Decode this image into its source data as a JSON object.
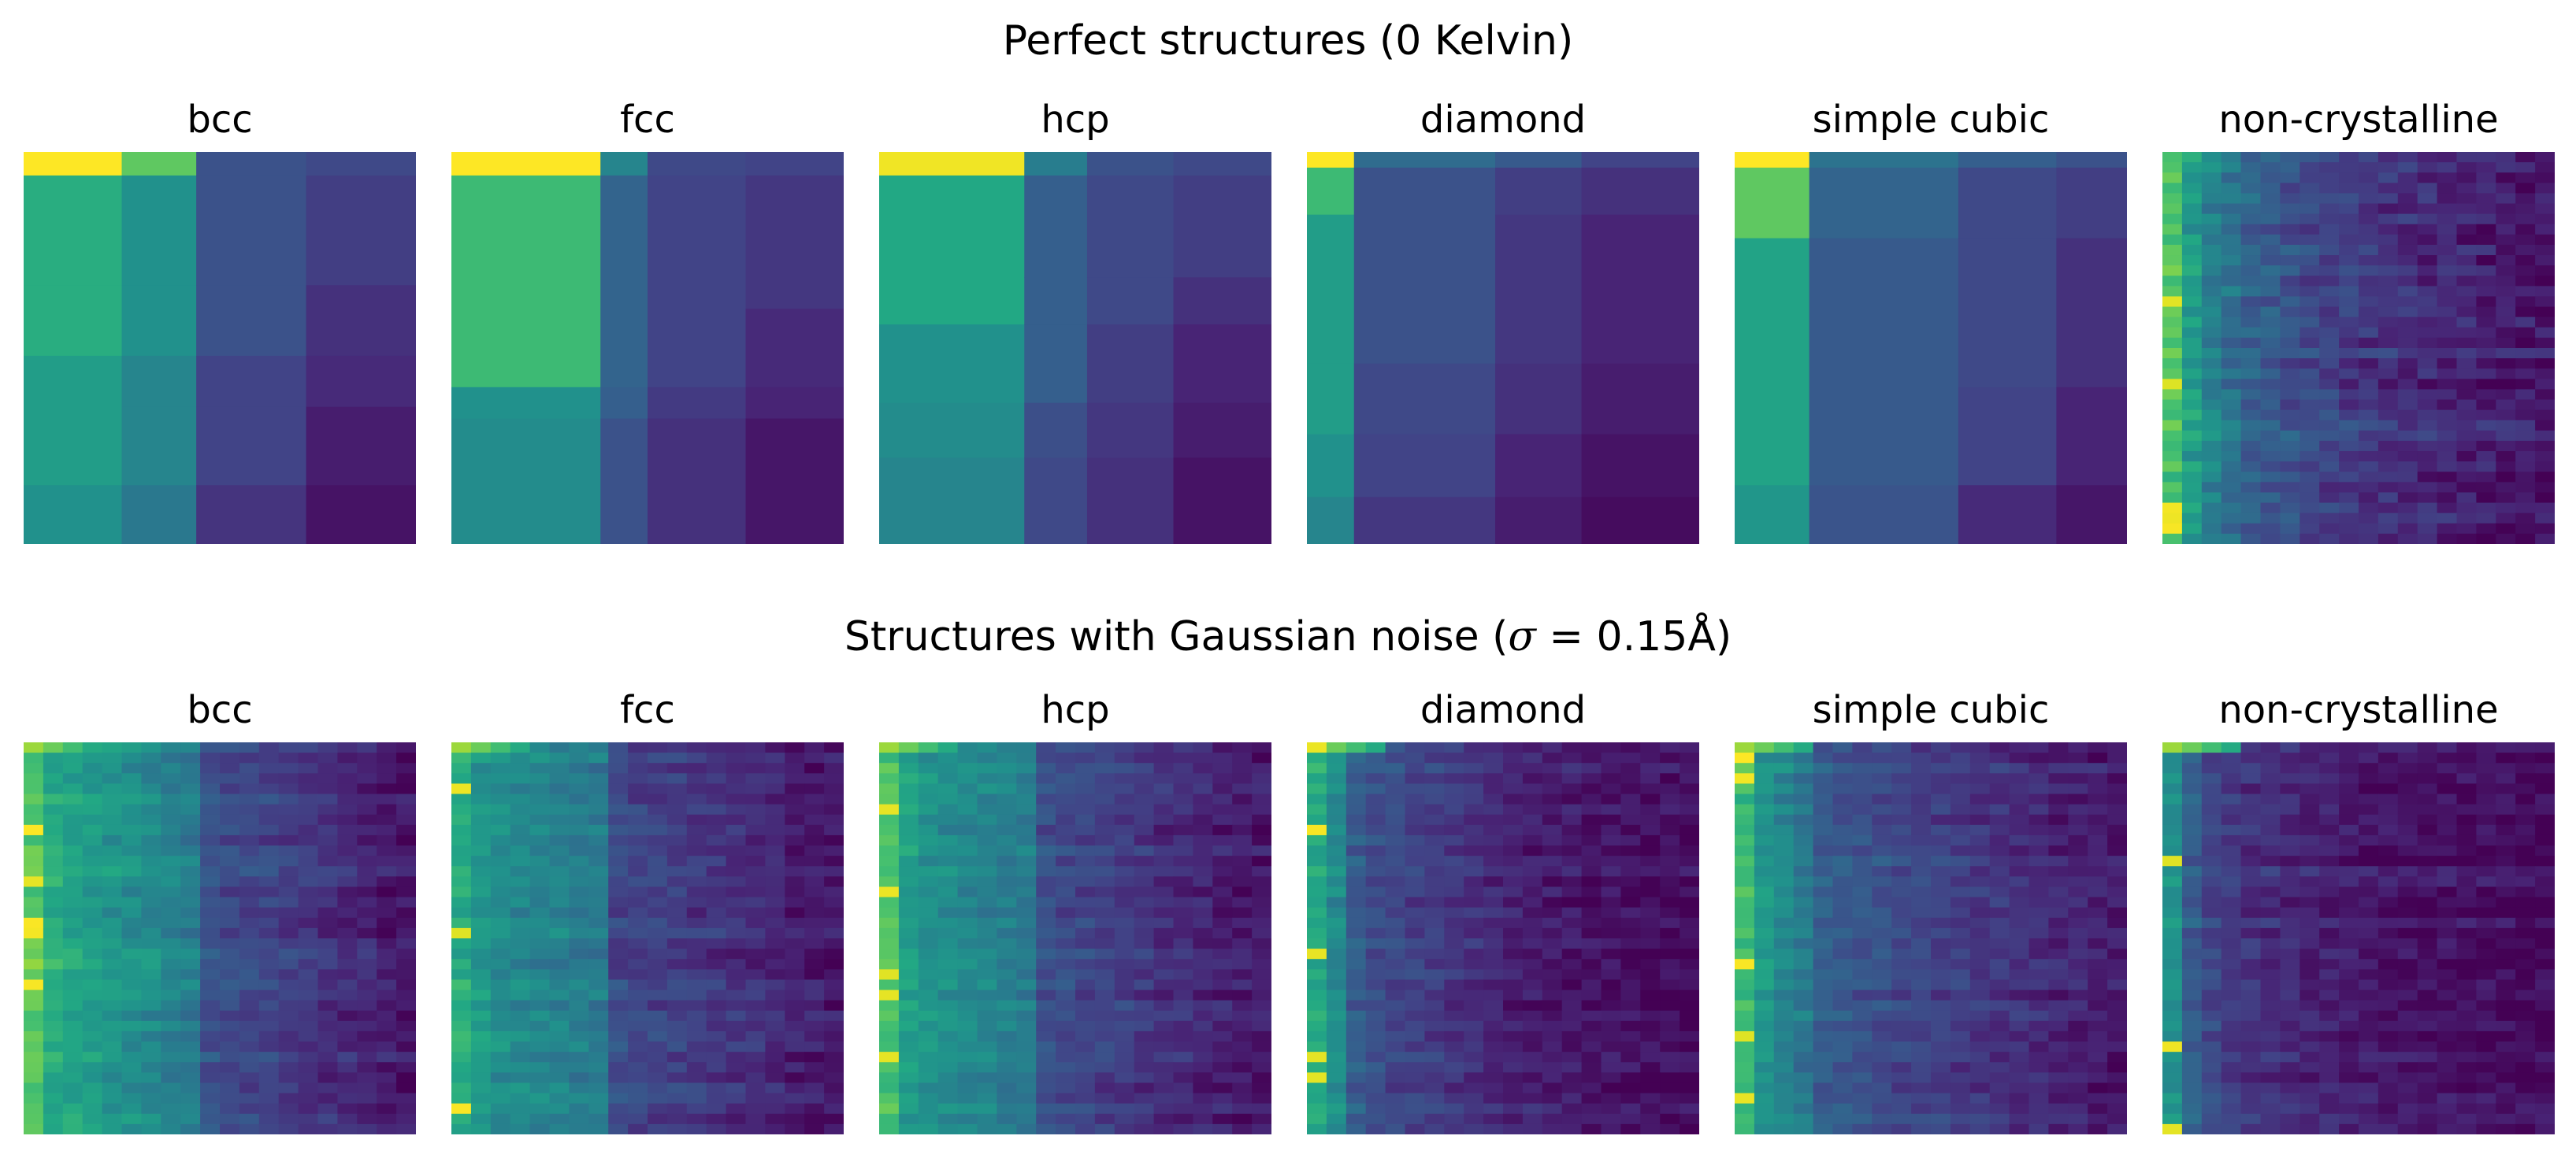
{
  "titles": {
    "row1": "Perfect structures (0 Kelvin)",
    "row2_prefix": "Structures with Gaussian noise (",
    "row2_sigma": "σ",
    "row2_suffix": " = 0.15Å)"
  },
  "chart_data": {
    "type": "heatmap",
    "colormap": "viridis",
    "value_range": [
      0,
      1
    ],
    "axes": "off",
    "rows": [
      {
        "name": "Perfect structures (0 Kelvin)",
        "noisy": false,
        "panels": [
          {
            "title": "bcc",
            "column_blocks": [
              {
                "width": 0.25,
                "values": [
                  1.0,
                  0.62,
                  0.62,
                  0.55,
                  0.55,
                  0.5
                ]
              },
              {
                "width": 0.19,
                "values": [
                  0.75,
                  0.5,
                  0.5,
                  0.45,
                  0.45,
                  0.4
                ]
              },
              {
                "width": 0.28,
                "values": [
                  0.25,
                  0.25,
                  0.25,
                  0.2,
                  0.2,
                  0.15
                ]
              },
              {
                "width": 0.28,
                "values": [
                  0.22,
                  0.18,
                  0.14,
                  0.12,
                  0.08,
                  0.05
                ]
              }
            ],
            "row_weights": [
              0.06,
              0.28,
              0.18,
              0.13,
              0.2,
              0.15
            ]
          },
          {
            "title": "fcc",
            "column_blocks": [
              {
                "width": 0.38,
                "values": [
                  1.0,
                  0.68,
                  0.68,
                  0.5,
                  0.48,
                  0.48
                ]
              },
              {
                "width": 0.12,
                "values": [
                  0.45,
                  0.32,
                  0.32,
                  0.3,
                  0.25,
                  0.22
                ]
              },
              {
                "width": 0.25,
                "values": [
                  0.22,
                  0.2,
                  0.2,
                  0.17,
                  0.14,
                  0.12
                ]
              },
              {
                "width": 0.25,
                "values": [
                  0.2,
                  0.16,
                  0.12,
                  0.1,
                  0.06,
                  0.04
                ]
              }
            ],
            "row_weights": [
              0.06,
              0.34,
              0.2,
              0.08,
              0.32,
              0.0
            ]
          },
          {
            "title": "hcp",
            "column_blocks": [
              {
                "width": 0.37,
                "values": [
                  0.98,
                  0.6,
                  0.6,
                  0.5,
                  0.48,
                  0.45
                ]
              },
              {
                "width": 0.16,
                "values": [
                  0.42,
                  0.3,
                  0.3,
                  0.3,
                  0.24,
                  0.22
                ]
              },
              {
                "width": 0.22,
                "values": [
                  0.25,
                  0.22,
                  0.22,
                  0.18,
                  0.16,
                  0.14
                ]
              },
              {
                "width": 0.25,
                "values": [
                  0.22,
                  0.18,
                  0.14,
                  0.1,
                  0.08,
                  0.05
                ]
              }
            ],
            "row_weights": [
              0.06,
              0.26,
              0.12,
              0.2,
              0.14,
              0.22
            ]
          },
          {
            "title": "diamond",
            "column_blocks": [
              {
                "width": 0.12,
                "values": [
                  1.0,
                  0.68,
                  0.55,
                  0.55,
                  0.5,
                  0.45
                ]
              },
              {
                "width": 0.36,
                "values": [
                  0.35,
                  0.25,
                  0.25,
                  0.22,
                  0.2,
                  0.16
                ]
              },
              {
                "width": 0.22,
                "values": [
                  0.28,
                  0.18,
                  0.16,
                  0.14,
                  0.1,
                  0.08
                ]
              },
              {
                "width": 0.3,
                "values": [
                  0.2,
                  0.14,
                  0.1,
                  0.08,
                  0.05,
                  0.03
                ]
              }
            ],
            "row_weights": [
              0.04,
              0.12,
              0.38,
              0.18,
              0.16,
              0.12
            ]
          },
          {
            "title": "simple cubic",
            "column_blocks": [
              {
                "width": 0.19,
                "values": [
                  1.0,
                  0.75,
                  0.58,
                  0.58,
                  0.52,
                  0.52
                ]
              },
              {
                "width": 0.38,
                "values": [
                  0.38,
                  0.32,
                  0.28,
                  0.28,
                  0.26,
                  0.24
                ]
              },
              {
                "width": 0.25,
                "values": [
                  0.3,
                  0.22,
                  0.22,
                  0.2,
                  0.12,
                  0.1
                ]
              },
              {
                "width": 0.18,
                "values": [
                  0.25,
                  0.18,
                  0.14,
                  0.1,
                  0.06,
                  0.04
                ]
              }
            ],
            "row_weights": [
              0.04,
              0.18,
              0.38,
              0.25,
              0.15,
              0.0
            ]
          },
          {
            "title": "non-crystalline",
            "columns": 20,
            "rows_count": 38,
            "profile": [
              0.72,
              0.55,
              0.45,
              0.38,
              0.32,
              0.28,
              0.25,
              0.22,
              0.2,
              0.18,
              0.16,
              0.15,
              0.13,
              0.12,
              0.11,
              0.1,
              0.09,
              0.08,
              0.07,
              0.06
            ]
          }
        ]
      },
      {
        "name": "Structures with Gaussian noise (σ = 0.15Å)",
        "noisy": true,
        "panels": [
          {
            "title": "bcc",
            "columns": 20,
            "rows_count": 38,
            "profile": [
              0.75,
              0.62,
              0.58,
              0.55,
              0.52,
              0.5,
              0.48,
              0.45,
              0.42,
              0.25,
              0.23,
              0.22,
              0.2,
              0.18,
              0.16,
              0.14,
              0.12,
              0.1,
              0.08,
              0.06
            ]
          },
          {
            "title": "fcc",
            "columns": 20,
            "rows_count": 38,
            "profile": [
              0.62,
              0.52,
              0.48,
              0.46,
              0.45,
              0.44,
              0.42,
              0.4,
              0.22,
              0.2,
              0.19,
              0.18,
              0.16,
              0.15,
              0.13,
              0.12,
              0.1,
              0.08,
              0.07,
              0.06
            ]
          },
          {
            "title": "hcp",
            "columns": 20,
            "rows_count": 38,
            "profile": [
              0.7,
              0.55,
              0.5,
              0.48,
              0.46,
              0.44,
              0.42,
              0.4,
              0.24,
              0.22,
              0.2,
              0.18,
              0.17,
              0.15,
              0.13,
              0.12,
              0.1,
              0.08,
              0.07,
              0.06
            ]
          },
          {
            "title": "diamond",
            "columns": 20,
            "rows_count": 38,
            "profile": [
              0.6,
              0.48,
              0.3,
              0.24,
              0.22,
              0.2,
              0.18,
              0.17,
              0.15,
              0.12,
              0.1,
              0.09,
              0.08,
              0.07,
              0.06,
              0.05,
              0.05,
              0.04,
              0.04,
              0.03
            ]
          },
          {
            "title": "simple cubic",
            "columns": 20,
            "rows_count": 38,
            "profile": [
              0.68,
              0.52,
              0.46,
              0.4,
              0.3,
              0.28,
              0.26,
              0.24,
              0.22,
              0.2,
              0.19,
              0.18,
              0.16,
              0.15,
              0.13,
              0.12,
              0.1,
              0.09,
              0.08,
              0.07
            ]
          },
          {
            "title": "non-crystalline",
            "columns": 20,
            "rows_count": 38,
            "profile": [
              0.5,
              0.3,
              0.22,
              0.18,
              0.15,
              0.13,
              0.12,
              0.1,
              0.09,
              0.08,
              0.07,
              0.06,
              0.06,
              0.05,
              0.05,
              0.04,
              0.04,
              0.03,
              0.03,
              0.02
            ]
          }
        ]
      }
    ]
  }
}
